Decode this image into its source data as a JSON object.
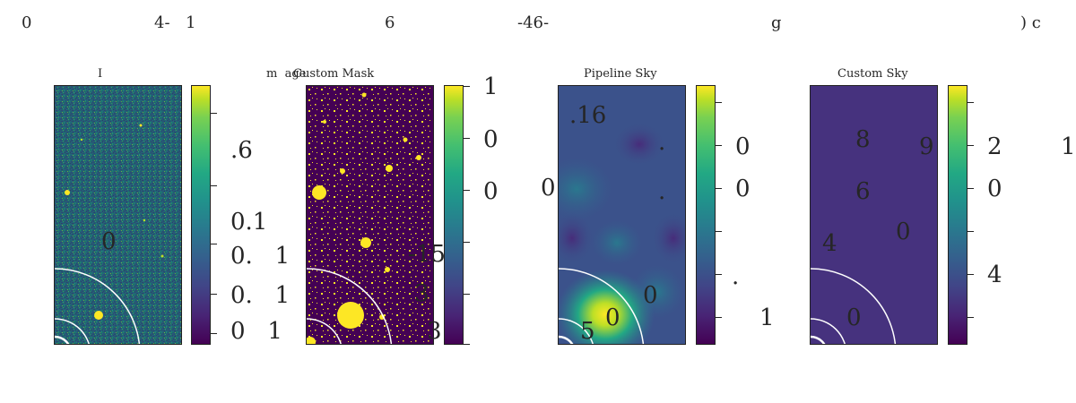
{
  "top_labels": [
    "0",
    "4-",
    "1",
    "6",
    "-46-",
    "g",
    ") c"
  ],
  "panels": [
    {
      "title": "I",
      "overlay_labels": [
        "0"
      ],
      "colorbar_labels": [
        ".6",
        "0.1",
        "0.   1",
        "0.   1",
        "0   1"
      ]
    },
    {
      "title": "m  age",
      "overlay_labels": [],
      "colorbar_labels": []
    },
    {
      "title": "Custom Mask",
      "overlay_labels": [
        "-15",
        "3",
        "3"
      ],
      "colorbar_labels": [
        "1",
        "0",
        "0"
      ]
    },
    {
      "title": "Pipeline Sky",
      "overlay_labels": [
        ".16",
        "0",
        ".",
        ".",
        "0",
        "0",
        "5"
      ],
      "colorbar_labels": [
        "0",
        "0",
        ".",
        "1"
      ]
    },
    {
      "title": "Custom Sky",
      "overlay_labels": [
        "8",
        "9",
        "6",
        "4",
        "0",
        "0"
      ],
      "colorbar_labels": [
        "2",
        "0",
        "4",
        "1"
      ]
    }
  ],
  "colors": {
    "viridis_dark": "#440154",
    "viridis_purple": "#482475",
    "viridis_blue": "#414487",
    "viridis_teal": "#21918c",
    "viridis_green": "#7ad151",
    "viridis_yellow": "#fde725",
    "arc": "#ffffff",
    "frame": "#222222",
    "text": "#262626"
  }
}
